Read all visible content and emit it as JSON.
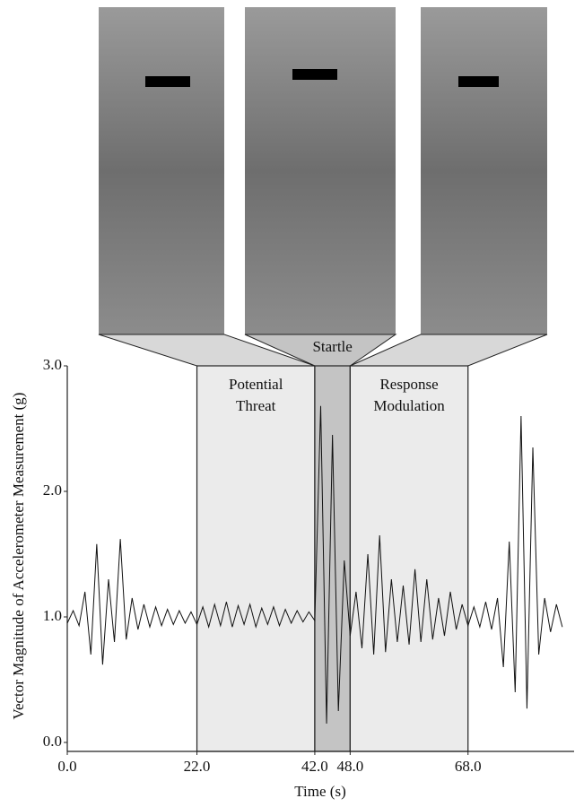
{
  "chart_data": {
    "type": "line",
    "x_label": "Time (s)",
    "y_label": "Vector Magnitude of Accelerometer Measurement (g)",
    "xlim": [
      0,
      86
    ],
    "xticks": [
      {
        "value": 0,
        "label": "0.0"
      },
      {
        "value": 22,
        "label": "22.0"
      },
      {
        "value": 42,
        "label": "42.0"
      },
      {
        "value": 48,
        "label": "48.0"
      },
      {
        "value": 68,
        "label": "68.0"
      }
    ],
    "ylim": [
      0,
      3
    ],
    "yticks": [
      {
        "value": 0,
        "label": "0.0"
      },
      {
        "value": 1,
        "label": "1.0"
      },
      {
        "value": 2,
        "label": "2.0"
      },
      {
        "value": 3,
        "label": "3.0"
      }
    ],
    "regions": [
      {
        "start": 22,
        "end": 42,
        "label_lines": [
          "Potential",
          "Threat"
        ],
        "color": "#ebebeb"
      },
      {
        "start": 42,
        "end": 48,
        "label_lines": [
          "Startle"
        ],
        "color": "#c4c4c4"
      },
      {
        "start": 48,
        "end": 68,
        "label_lines": [
          "Response",
          "Modulation"
        ],
        "color": "#ebebeb"
      }
    ],
    "x": [
      0,
      1,
      2,
      3,
      4,
      5,
      6,
      7,
      8,
      9,
      10,
      11,
      12,
      13,
      14,
      15,
      16,
      17,
      18,
      19,
      20,
      21,
      22,
      23,
      24,
      25,
      26,
      27,
      28,
      29,
      30,
      31,
      32,
      33,
      34,
      35,
      36,
      37,
      38,
      39,
      40,
      41,
      42,
      43,
      44,
      45,
      46,
      47,
      48,
      49,
      50,
      51,
      52,
      53,
      54,
      55,
      56,
      57,
      58,
      59,
      60,
      61,
      62,
      63,
      64,
      65,
      66,
      67,
      68,
      69,
      70,
      71,
      72,
      73,
      74,
      75,
      76,
      77,
      78,
      79,
      80,
      81,
      82,
      83,
      84
    ],
    "series": [
      {
        "color": "#111111",
        "values": [
          0.95,
          1.05,
          0.93,
          1.2,
          0.7,
          1.58,
          0.62,
          1.3,
          0.8,
          1.62,
          0.82,
          1.15,
          0.9,
          1.1,
          0.92,
          1.08,
          0.93,
          1.06,
          0.94,
          1.05,
          0.95,
          1.04,
          0.94,
          1.08,
          0.92,
          1.1,
          0.93,
          1.12,
          0.92,
          1.09,
          0.94,
          1.1,
          0.92,
          1.07,
          0.94,
          1.08,
          0.93,
          1.06,
          0.95,
          1.05,
          0.96,
          1.04,
          0.97,
          2.68,
          0.15,
          2.45,
          0.25,
          1.45,
          0.85,
          1.2,
          0.75,
          1.5,
          0.7,
          1.65,
          0.72,
          1.3,
          0.8,
          1.25,
          0.78,
          1.38,
          0.8,
          1.3,
          0.82,
          1.15,
          0.85,
          1.2,
          0.9,
          1.1,
          0.93,
          1.08,
          0.92,
          1.12,
          0.9,
          1.15,
          0.6,
          1.6,
          0.4,
          2.6,
          0.27,
          2.35,
          0.7,
          1.15,
          0.88,
          1.1,
          0.92
        ]
      }
    ]
  }
}
